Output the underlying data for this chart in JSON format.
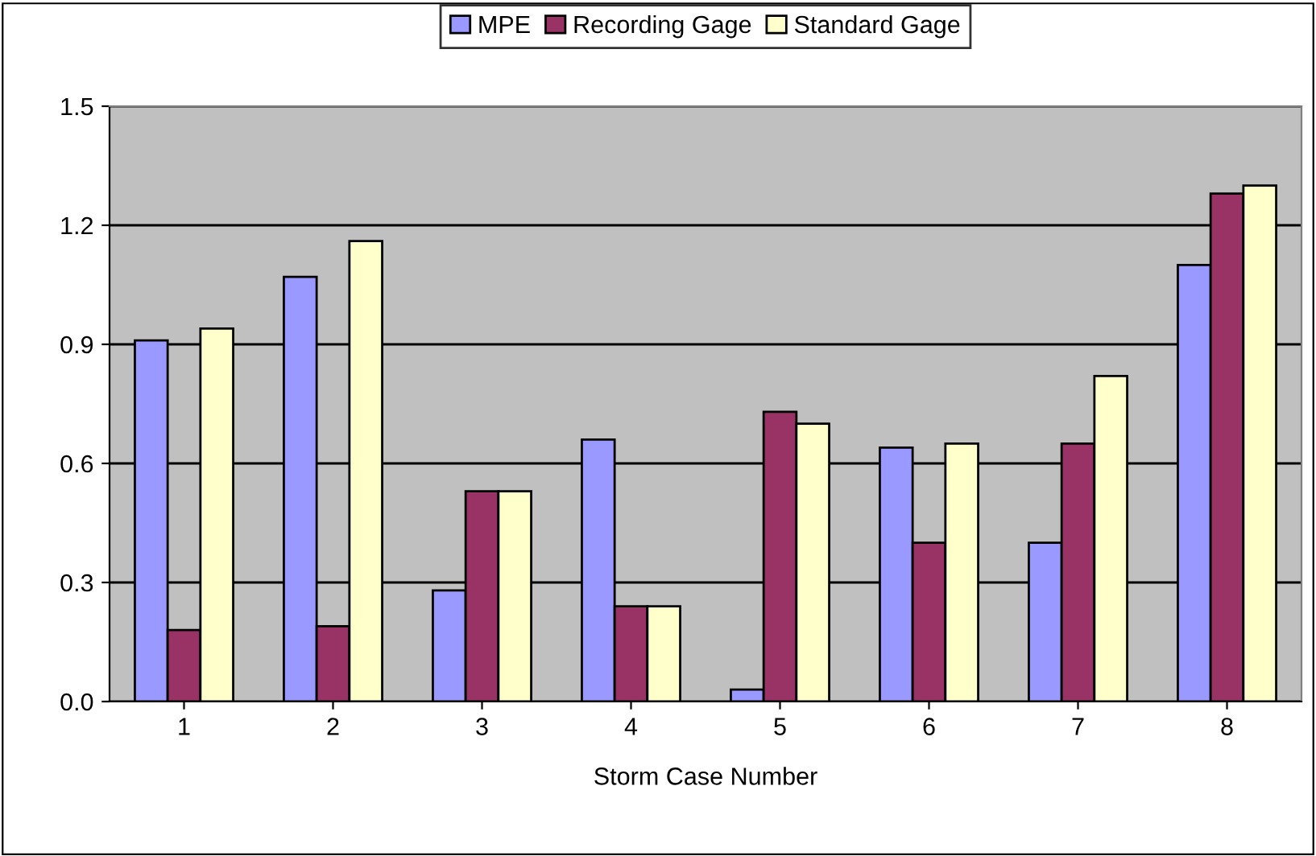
{
  "chart_data": {
    "type": "bar",
    "xlabel": "Storm Case Number",
    "categories": [
      "1",
      "2",
      "3",
      "4",
      "5",
      "6",
      "7",
      "8"
    ],
    "series": [
      {
        "name": "MPE",
        "color": "#9999ff",
        "values": [
          0.91,
          1.07,
          0.28,
          0.66,
          0.03,
          0.64,
          0.4,
          1.1
        ]
      },
      {
        "name": "Recording Gage",
        "color": "#993366",
        "values": [
          0.18,
          0.19,
          0.53,
          0.24,
          0.73,
          0.4,
          0.65,
          1.28
        ]
      },
      {
        "name": "Standard Gage",
        "color": "#ffffcc",
        "values": [
          0.94,
          1.16,
          0.53,
          0.24,
          0.7,
          0.65,
          0.82,
          1.3
        ]
      }
    ],
    "ylim": [
      0,
      1.5
    ],
    "yticks": [
      {
        "value": 0,
        "label": "0.0"
      },
      {
        "value": 0.3,
        "label": "0.3"
      },
      {
        "value": 0.6,
        "label": "0.6"
      },
      {
        "value": 0.9,
        "label": "0.9"
      },
      {
        "value": 1.2,
        "label": "1.2"
      },
      {
        "value": 1.5,
        "label": "1.5"
      }
    ],
    "grid": "y",
    "legend": "top"
  }
}
